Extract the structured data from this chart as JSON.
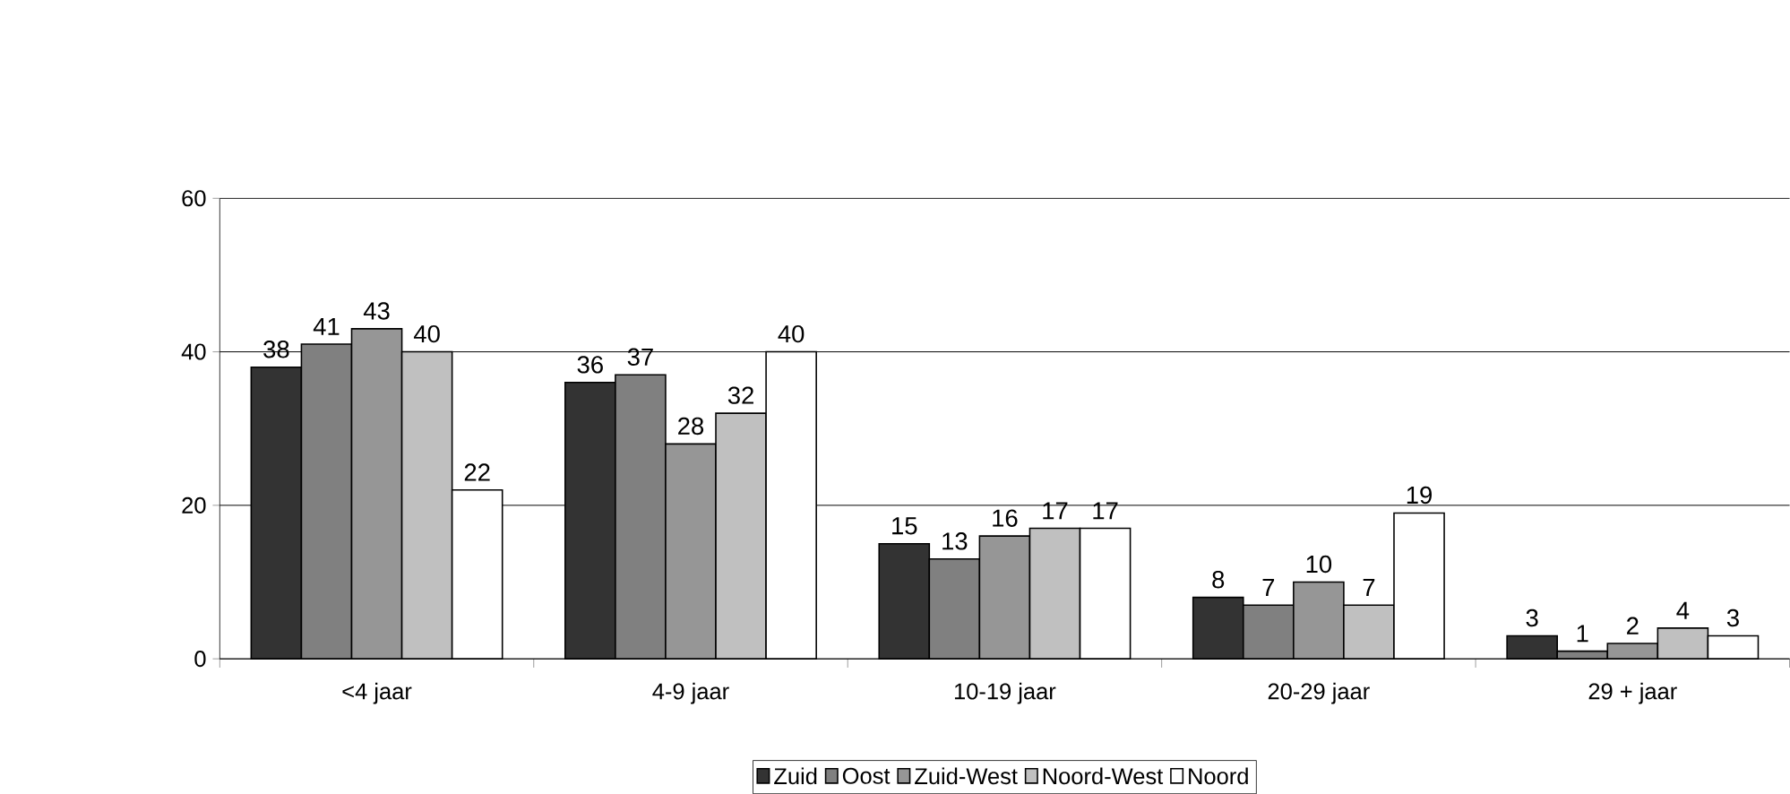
{
  "chart_data": {
    "type": "bar",
    "categories": [
      "<4 jaar",
      "4-9 jaar",
      "10-19 jaar",
      "20-29 jaar",
      "29 + jaar"
    ],
    "series": [
      {
        "name": "Zuid",
        "color": "#333333",
        "values": [
          38,
          36,
          15,
          8,
          3
        ]
      },
      {
        "name": "Oost",
        "color": "#808080",
        "values": [
          41,
          37,
          13,
          7,
          1
        ]
      },
      {
        "name": "Zuid-West",
        "color": "#969696",
        "values": [
          43,
          28,
          16,
          10,
          2
        ]
      },
      {
        "name": "Noord-West",
        "color": "#c0c0c0",
        "values": [
          40,
          32,
          17,
          7,
          4
        ]
      },
      {
        "name": "Noord",
        "color": "#ffffff",
        "values": [
          22,
          40,
          17,
          19,
          3
        ]
      }
    ],
    "ylim": [
      0,
      60
    ],
    "yticks": [
      0,
      20,
      40,
      60
    ],
    "grid": "y",
    "legend": "bottom",
    "data_labels": true
  }
}
